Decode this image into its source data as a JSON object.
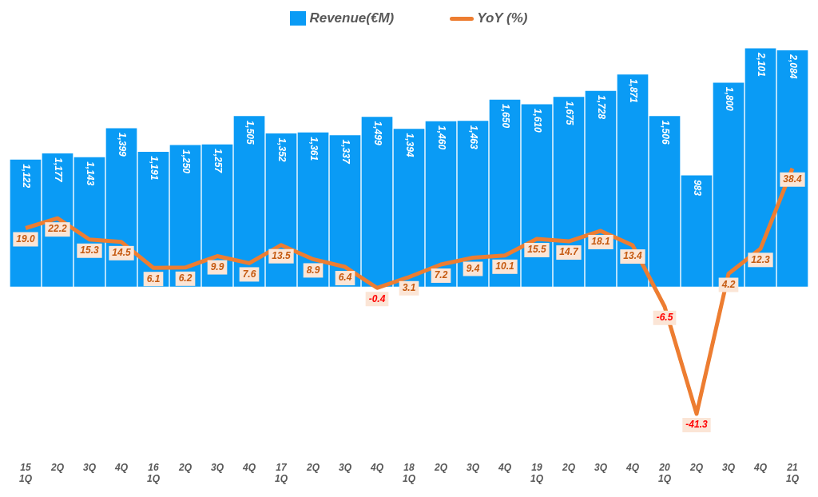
{
  "chart_data": {
    "type": "bar",
    "categories": [
      "15\n1Q",
      "2Q",
      "3Q",
      "4Q",
      "16\n1Q",
      "2Q",
      "3Q",
      "4Q",
      "17\n1Q",
      "2Q",
      "3Q",
      "4Q",
      "18\n1Q",
      "2Q",
      "3Q",
      "4Q",
      "19\n1Q",
      "2Q",
      "3Q",
      "4Q",
      "20\n1Q",
      "2Q",
      "3Q",
      "4Q",
      "21\n1Q"
    ],
    "series": [
      {
        "name": "Revenue(€M)",
        "color": "#0a9bf5",
        "values": [
          1122,
          1177,
          1143,
          1399,
          1191,
          1250,
          1257,
          1505,
          1352,
          1361,
          1337,
          1499,
          1394,
          1460,
          1463,
          1650,
          1610,
          1675,
          1728,
          1871,
          1506,
          983,
          1800,
          2101,
          2084
        ],
        "value_labels": [
          "1,122",
          "1,177",
          "1,143",
          "1,399",
          "1,191",
          "1,250",
          "1,257",
          "1,505",
          "1,352",
          "1,361",
          "1,337",
          "1,499",
          "1,394",
          "1,460",
          "1,463",
          "1,650",
          "1,610",
          "1,675",
          "1,728",
          "1,871",
          "1,506",
          "983",
          "1,800",
          "2,101",
          "2,084"
        ]
      },
      {
        "name": "YoY (%)",
        "type": "line",
        "axis": "y2",
        "color": "#ed7d31",
        "values": [
          19.0,
          22.2,
          15.3,
          14.5,
          6.1,
          6.2,
          9.9,
          7.6,
          13.5,
          8.9,
          6.4,
          -0.4,
          3.1,
          7.2,
          9.4,
          10.1,
          15.5,
          14.7,
          18.1,
          13.4,
          -6.5,
          -41.3,
          4.2,
          12.3,
          38.4
        ],
        "value_labels": [
          "19.0",
          "22.2",
          "15.3",
          "14.5",
          "6.1",
          "6.2",
          "9.9",
          "7.6",
          "13.5",
          "8.9",
          "6.4",
          "-0.4",
          "3.1",
          "7.2",
          "9.4",
          "10.1",
          "15.5",
          "14.7",
          "18.1",
          "13.4",
          "-6.5",
          "-41.3",
          "4.2",
          "12.3",
          "38.4"
        ]
      }
    ],
    "legend": "top",
    "grid": false,
    "tick_labels": "x",
    "marker": "none",
    "line_style": "solid"
  }
}
